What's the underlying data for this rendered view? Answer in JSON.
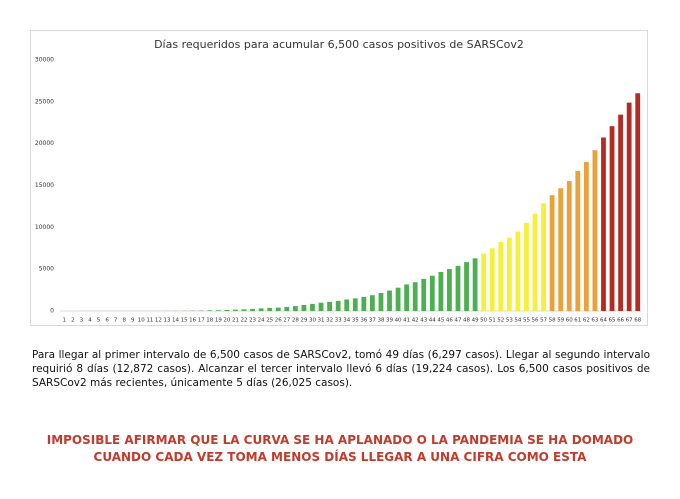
{
  "chart_data": {
    "type": "bar",
    "title": "Días requeridos para acumular 6,500 casos positivos de SARSCov2",
    "categories": [
      1,
      2,
      3,
      4,
      5,
      6,
      7,
      8,
      9,
      10,
      11,
      12,
      13,
      14,
      15,
      16,
      17,
      18,
      19,
      20,
      21,
      22,
      23,
      24,
      25,
      26,
      27,
      28,
      29,
      30,
      31,
      32,
      33,
      34,
      35,
      36,
      37,
      38,
      39,
      40,
      41,
      42,
      43,
      44,
      45,
      46,
      47,
      48,
      49,
      50,
      51,
      52,
      53,
      54,
      55,
      56,
      57,
      58,
      59,
      60,
      61,
      62,
      63,
      64,
      65,
      66,
      67,
      68
    ],
    "values": [
      1,
      2,
      3,
      4,
      5,
      5,
      5,
      5,
      6,
      7,
      7,
      7,
      11,
      16,
      26,
      41,
      53,
      82,
      93,
      118,
      164,
      203,
      251,
      316,
      367,
      405,
      475,
      585,
      717,
      848,
      993,
      1094,
      1215,
      1378,
      1510,
      1688,
      1890,
      2143,
      2439,
      2785,
      3181,
      3441,
      3844,
      4219,
      4661,
      5014,
      5399,
      5847,
      6297,
      6875,
      7497,
      8261,
      8772,
      9501,
      10544,
      11633,
      12872,
      13842,
      14677,
      15529,
      16752,
      17799,
      19224,
      20739,
      22088,
      23471,
      24905,
      26025
    ],
    "colors": [
      "#4caf50",
      "#4caf50",
      "#4caf50",
      "#4caf50",
      "#4caf50",
      "#4caf50",
      "#4caf50",
      "#4caf50",
      "#4caf50",
      "#4caf50",
      "#4caf50",
      "#4caf50",
      "#4caf50",
      "#4caf50",
      "#4caf50",
      "#4caf50",
      "#4caf50",
      "#4caf50",
      "#4caf50",
      "#4caf50",
      "#4caf50",
      "#4caf50",
      "#4caf50",
      "#4caf50",
      "#4caf50",
      "#4caf50",
      "#4caf50",
      "#4caf50",
      "#4caf50",
      "#4caf50",
      "#4caf50",
      "#4caf50",
      "#4caf50",
      "#4caf50",
      "#4caf50",
      "#4caf50",
      "#4caf50",
      "#4caf50",
      "#4caf50",
      "#4caf50",
      "#4caf50",
      "#4caf50",
      "#4caf50",
      "#4caf50",
      "#4caf50",
      "#4caf50",
      "#4caf50",
      "#4caf50",
      "#4caf50",
      "#f5f03a",
      "#f5f03a",
      "#f5f03a",
      "#f5f03a",
      "#f5f03a",
      "#f5f03a",
      "#f5f03a",
      "#f5f03a",
      "#eba13a",
      "#eba13a",
      "#eba13a",
      "#eba13a",
      "#eba13a",
      "#eba13a",
      "#b52a22",
      "#b52a22",
      "#b52a22",
      "#b52a22",
      "#b52a22"
    ],
    "ylim": [
      0,
      30000
    ],
    "yticks": [
      0,
      5000,
      10000,
      15000,
      20000,
      25000,
      30000
    ],
    "grid": false
  },
  "paragraph": "Para llegar al primer intervalo de 6,500 casos de SARSCov2, tomó 49 días (6,297 casos). Llegar al segundo intervalo requirió 8 días (12,872 casos). Alcanzar el tercer intervalo llevó 6 días (19,224 casos). Los 6,500 casos positivos de SARSCov2 más recientes, únicamente 5 días (26,025 casos).",
  "warning": [
    "IMPOSIBLE AFIRMAR QUE LA CURVA SE HA APLANADO O LA PANDEMIA SE HA DOMADO",
    "CUANDO CADA VEZ TOMA MENOS DÍAS LLEGAR A UNA CIFRA COMO ESTA"
  ]
}
